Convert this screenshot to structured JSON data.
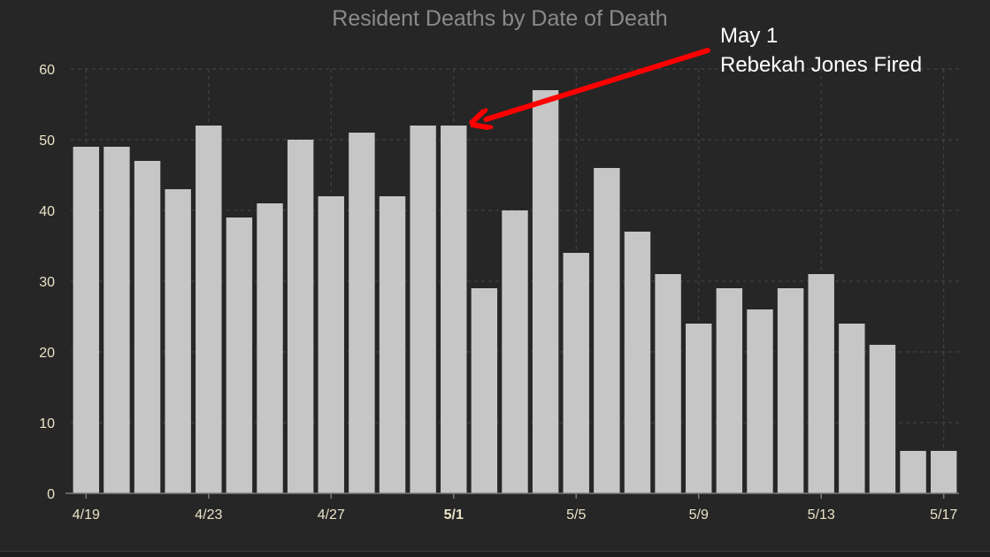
{
  "chart_data": {
    "type": "bar",
    "title": "Resident Deaths by Date of Death",
    "xlabel": "",
    "ylabel": "",
    "ylim": [
      0,
      60
    ],
    "yticks": [
      0,
      10,
      20,
      30,
      40,
      50,
      60
    ],
    "grid": true,
    "bar_color": "#c6c6c6",
    "categories": [
      "4/19",
      "4/20",
      "4/21",
      "4/22",
      "4/23",
      "4/24",
      "4/25",
      "4/26",
      "4/27",
      "4/28",
      "4/29",
      "4/30",
      "5/1",
      "5/2",
      "5/3",
      "5/4",
      "5/5",
      "5/6",
      "5/7",
      "5/8",
      "5/9",
      "5/10",
      "5/11",
      "5/12",
      "5/13",
      "5/14",
      "5/15",
      "5/16",
      "5/17"
    ],
    "values": [
      49,
      49,
      47,
      43,
      52,
      39,
      41,
      50,
      42,
      51,
      42,
      52,
      52,
      29,
      40,
      57,
      34,
      46,
      37,
      31,
      24,
      29,
      26,
      29,
      31,
      24,
      21,
      6,
      6
    ],
    "x_tick_labels": [
      "4/19",
      "4/23",
      "4/27",
      "5/1",
      "5/5",
      "5/9",
      "5/13",
      "5/17"
    ],
    "highlighted_tick": "5/1",
    "annotation": {
      "lines": [
        "May 1",
        "Rebekah Jones Fired"
      ],
      "target_category": "5/1",
      "arrow_color": "#ff0000"
    }
  }
}
